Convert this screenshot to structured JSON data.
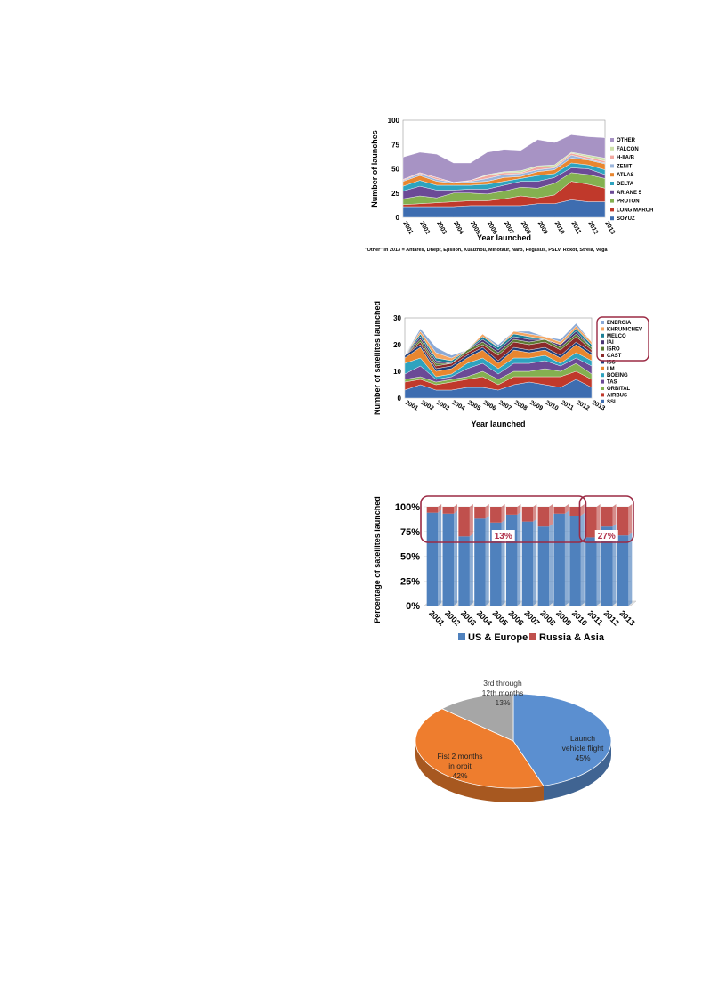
{
  "chart_data": [
    {
      "type": "area",
      "stacked": true,
      "xlabel": "Year launched",
      "ylabel": "Number of launches",
      "ylim": [
        0,
        100
      ],
      "yticks": [
        0,
        25,
        50,
        75,
        100
      ],
      "x": [
        "2001",
        "2002",
        "2003",
        "2004",
        "2005",
        "2006",
        "2007",
        "2008",
        "2009",
        "2010",
        "2011",
        "2012",
        "2013"
      ],
      "series": [
        {
          "name": "SOYUZ",
          "color": "#3e6db0",
          "values": [
            11,
            11,
            11,
            11,
            12,
            12,
            12,
            12,
            14,
            14,
            18,
            16,
            16
          ]
        },
        {
          "name": "LONG MARCH",
          "color": "#c0392b",
          "values": [
            2,
            3,
            4,
            5,
            5,
            5,
            7,
            10,
            6,
            9,
            19,
            18,
            14
          ]
        },
        {
          "name": "PROTON",
          "color": "#84b050",
          "values": [
            6,
            8,
            5,
            9,
            8,
            7,
            8,
            9,
            10,
            12,
            9,
            10,
            10
          ]
        },
        {
          "name": "ARIANE 5",
          "color": "#6b4a96",
          "values": [
            8,
            10,
            8,
            3,
            4,
            5,
            6,
            6,
            7,
            6,
            5,
            6,
            4
          ]
        },
        {
          "name": "DELTA",
          "color": "#2ea3bf",
          "values": [
            5,
            6,
            5,
            5,
            4,
            5,
            4,
            3,
            6,
            4,
            5,
            4,
            5
          ]
        },
        {
          "name": "ATLAS",
          "color": "#e8862f",
          "values": [
            5,
            5,
            4,
            2,
            3,
            3,
            4,
            2,
            4,
            4,
            5,
            5,
            6
          ]
        },
        {
          "name": "ZENIT",
          "color": "#9bb5db",
          "values": [
            1,
            2,
            2,
            1,
            1,
            3,
            3,
            3,
            2,
            2,
            3,
            1,
            1
          ]
        },
        {
          "name": "H-IIA/B",
          "color": "#f2a8a0",
          "values": [
            1,
            1,
            2,
            0,
            1,
            3,
            2,
            1,
            3,
            1,
            2,
            2,
            2
          ]
        },
        {
          "name": "FALCON",
          "color": "#cde0a8",
          "values": [
            0,
            0,
            0,
            0,
            0,
            1,
            1,
            2,
            1,
            2,
            1,
            2,
            3
          ]
        },
        {
          "name": "OTHER",
          "color": "#a793c4",
          "values": [
            23,
            21,
            24,
            20,
            18,
            23,
            23,
            21,
            27,
            23,
            18,
            19,
            21
          ]
        }
      ],
      "note": "\"Other\" in 2013 = Antares, Dnepr, Epsilon, Kuaizhou, Minotaur, Naro, Pegasus, PSLV, Rokot, Strela, Vega"
    },
    {
      "type": "area",
      "stacked": true,
      "xlabel": "Year launched",
      "ylabel": "Number of satellites launched",
      "ylim": [
        0,
        30
      ],
      "yticks": [
        0,
        10,
        20,
        30
      ],
      "x": [
        "2001",
        "2002",
        "2003",
        "2004",
        "2005",
        "2006",
        "2007",
        "2008",
        "2009",
        "2010",
        "2011",
        "2012",
        "2013"
      ],
      "series": [
        {
          "name": "SSL",
          "color": "#3e6db0",
          "values": [
            3,
            5,
            3,
            3,
            4,
            4,
            3,
            5,
            6,
            5,
            4,
            7,
            4
          ]
        },
        {
          "name": "AIRBUS",
          "color": "#c0392b",
          "values": [
            3,
            2,
            2,
            3,
            3,
            4,
            2,
            3,
            2,
            3,
            4,
            3,
            3
          ]
        },
        {
          "name": "ORBITAL",
          "color": "#84b050",
          "values": [
            1,
            1,
            1,
            1,
            1,
            2,
            2,
            2,
            2,
            3,
            2,
            3,
            2
          ]
        },
        {
          "name": "TAS",
          "color": "#6b4a96",
          "values": [
            2,
            4,
            1,
            1,
            3,
            3,
            2,
            3,
            3,
            3,
            2,
            2,
            3
          ]
        },
        {
          "name": "BOEING",
          "color": "#2ea3bf",
          "values": [
            4,
            3,
            1,
            1,
            2,
            2,
            2,
            2,
            2,
            2,
            1,
            2,
            2
          ]
        },
        {
          "name": "LM",
          "color": "#e8862f",
          "values": [
            2,
            4,
            2,
            2,
            2,
            3,
            2,
            3,
            2,
            2,
            2,
            3,
            2
          ]
        },
        {
          "name": "ISS",
          "color": "#1f3f7a",
          "values": [
            1,
            1,
            1,
            1,
            1,
            1,
            1,
            1,
            1,
            1,
            1,
            1,
            1
          ]
        },
        {
          "name": "CAST",
          "color": "#8a2a2a",
          "values": [
            0,
            1,
            1,
            1,
            1,
            1,
            2,
            2,
            2,
            2,
            2,
            2,
            1
          ]
        },
        {
          "name": "ISRO",
          "color": "#5d7a34",
          "values": [
            0,
            1,
            1,
            0,
            1,
            1,
            1,
            1,
            1,
            1,
            1,
            1,
            1
          ]
        },
        {
          "name": "IAI",
          "color": "#4b3573",
          "values": [
            0,
            1,
            1,
            0,
            0,
            1,
            1,
            1,
            1,
            0,
            1,
            1,
            0
          ]
        },
        {
          "name": "MELCO",
          "color": "#1b7f96",
          "values": [
            0,
            1,
            1,
            1,
            0,
            1,
            1,
            1,
            1,
            0,
            0,
            1,
            1
          ]
        },
        {
          "name": "KHRUNICHEV",
          "color": "#f4a460",
          "values": [
            0,
            1,
            2,
            1,
            0,
            1,
            0,
            1,
            1,
            1,
            1,
            1,
            1
          ]
        },
        {
          "name": "ENERGIA",
          "color": "#8aa9d6",
          "values": [
            0,
            1,
            2,
            1,
            0,
            0,
            1,
            0,
            1,
            0,
            1,
            1,
            0
          ]
        }
      ]
    },
    {
      "type": "bar",
      "stacked": true,
      "ylabel": "Percentage of satellites launched",
      "ylim": [
        0,
        100
      ],
      "yticks": [
        "0%",
        "25%",
        "50%",
        "75%",
        "100%"
      ],
      "categories": [
        "2001",
        "2002",
        "2003",
        "2004",
        "2005",
        "2006",
        "2007",
        "2008",
        "2009",
        "2010",
        "2011",
        "2012",
        "2013"
      ],
      "series": [
        {
          "name": "US & Europe",
          "color": "#4f81bd",
          "values": [
            94,
            93,
            70,
            88,
            84,
            92,
            85,
            80,
            93,
            91,
            69,
            80,
            71
          ]
        },
        {
          "name": "Russia & Asia",
          "color": "#c0504d",
          "values": [
            6,
            7,
            30,
            12,
            16,
            8,
            15,
            20,
            7,
            9,
            31,
            20,
            29
          ]
        }
      ],
      "annotations": [
        {
          "label": "13%",
          "covers": [
            "2001",
            "2010"
          ]
        },
        {
          "label": "27%",
          "covers": [
            "2011",
            "2013"
          ]
        }
      ]
    },
    {
      "type": "pie",
      "slices": [
        {
          "label": "Launch vehicle flight",
          "value": 45,
          "pct": "45%",
          "color": "#5b8fd0",
          "lines": [
            "Launch",
            "vehicle flight",
            "45%"
          ]
        },
        {
          "label": "Fist 2 months in orbit",
          "value": 42,
          "pct": "42%",
          "color": "#ee7d2e",
          "lines": [
            "Fist 2 months",
            "in orbit",
            "42%"
          ]
        },
        {
          "label": "3rd through 12th months",
          "value": 13,
          "pct": "13%",
          "color": "#a6a6a6",
          "lines": [
            "3rd through",
            "12th months",
            "13%"
          ]
        }
      ]
    }
  ]
}
